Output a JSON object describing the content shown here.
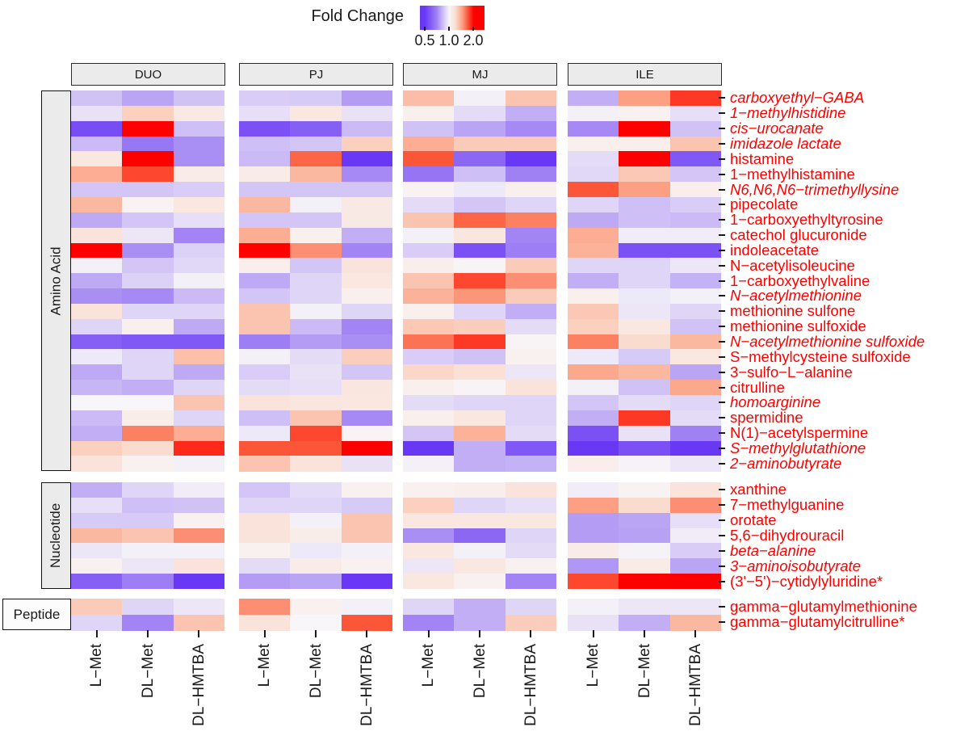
{
  "legend": {
    "title": "Fold Change",
    "ticks": [
      "0.5",
      "1.0",
      "2.0"
    ],
    "low_color": "#6838F5",
    "mid_color": "#F8F6F8",
    "high_color": "#FF0000",
    "scale_type": "log"
  },
  "facets": [
    "DUO",
    "PJ",
    "MJ",
    "ILE"
  ],
  "treatments": [
    "L−Met",
    "DL−Met",
    "DL−HMTBA"
  ],
  "label_color": "#FF0000",
  "chart_data": {
    "type": "heatmap",
    "value_label": "Fold Change",
    "legend_range": [
      0.5,
      1.0,
      2.0
    ],
    "facets": [
      "DUO",
      "PJ",
      "MJ",
      "ILE"
    ],
    "treatments": [
      "L−Met",
      "DL−Met",
      "DL−HMTBA"
    ],
    "column_order": [
      "DUO:L-Met",
      "DUO:DL-Met",
      "DUO:DL-HMTBA",
      "PJ:L-Met",
      "PJ:DL-Met",
      "PJ:DL-HMTBA",
      "MJ:L-Met",
      "MJ:DL-Met",
      "MJ:DL-HMTBA",
      "ILE:L-Met",
      "ILE:DL-Met",
      "ILE:DL-HMTBA"
    ],
    "groups": [
      {
        "name": "Amino Acid",
        "rows": [
          {
            "label": "carboxyethyl−GABA",
            "italic": true,
            "values": [
              0.85,
              0.78,
              0.85,
              0.88,
              0.87,
              0.76,
              1.33,
              0.98,
              1.3,
              0.8,
              1.45,
              1.8
            ]
          },
          {
            "label": "1−methylhistidine",
            "italic": true,
            "values": [
              0.94,
              1.25,
              1.1,
              0.93,
              1.12,
              0.94,
              1.05,
              0.92,
              0.8,
              0.98,
              1.04,
              0.93
            ]
          },
          {
            "label": "cis−urocanate",
            "italic": true,
            "values": [
              0.55,
              2.4,
              0.84,
              0.56,
              0.6,
              0.83,
              0.85,
              0.78,
              0.72,
              0.72,
              2.4,
              0.85
            ]
          },
          {
            "label": "imidazole lactate",
            "italic": true,
            "values": [
              0.83,
              0.67,
              0.73,
              0.84,
              0.86,
              1.25,
              1.4,
              1.27,
              1.27,
              1.05,
              1.06,
              1.3
            ]
          },
          {
            "label": "histamine",
            "italic": false,
            "values": [
              1.12,
              2.1,
              0.73,
              0.83,
              1.65,
              0.5,
              1.7,
              0.62,
              0.47,
              0.92,
              2.3,
              0.58
            ]
          },
          {
            "label": "1−methylhistamine",
            "italic": false,
            "values": [
              1.4,
              1.75,
              1.08,
              1.08,
              1.35,
              0.72,
              0.66,
              0.84,
              0.7,
              0.91,
              1.28,
              0.86
            ]
          },
          {
            "label": "N6,N6,N6−trimethyllysine",
            "italic": true,
            "values": [
              0.86,
              0.86,
              0.88,
              0.86,
              0.86,
              0.86,
              1.03,
              0.96,
              1.05,
              1.7,
              1.45,
              1.06
            ]
          },
          {
            "label": "pipecolate",
            "italic": false,
            "values": [
              1.35,
              1.03,
              1.12,
              1.35,
              0.98,
              1.1,
              0.92,
              0.86,
              0.9,
              0.9,
              0.84,
              0.88
            ]
          },
          {
            "label": "1−carboxyethyltyrosine",
            "italic": false,
            "values": [
              0.79,
              0.86,
              0.93,
              0.86,
              0.86,
              1.1,
              1.3,
              1.65,
              1.55,
              0.79,
              0.84,
              0.83
            ]
          },
          {
            "label": "catechol glucuronide",
            "italic": false,
            "values": [
              1.15,
              0.95,
              0.71,
              1.4,
              1.05,
              0.8,
              0.98,
              1.13,
              0.71,
              1.4,
              0.97,
              0.97
            ]
          },
          {
            "label": "indoleacetate",
            "italic": false,
            "values": [
              2.4,
              0.73,
              0.89,
              2.4,
              1.5,
              0.71,
              0.88,
              0.56,
              0.69,
              1.38,
              0.56,
              0.56
            ]
          },
          {
            "label": "N−acetylisoleucine",
            "italic": false,
            "values": [
              0.98,
              0.86,
              0.91,
              1.06,
              0.86,
              1.15,
              1.06,
              1.02,
              1.27,
              0.9,
              0.9,
              0.95
            ]
          },
          {
            "label": "1−carboxyethylvaline",
            "italic": false,
            "values": [
              0.79,
              0.89,
              0.98,
              0.79,
              0.9,
              1.12,
              1.3,
              1.75,
              1.5,
              0.8,
              0.9,
              0.81
            ]
          },
          {
            "label": "N−acetylmethionine",
            "italic": true,
            "values": [
              0.73,
              0.72,
              0.83,
              0.86,
              0.9,
              1.05,
              1.38,
              1.48,
              1.27,
              1.05,
              0.96,
              0.98
            ]
          },
          {
            "label": "methionine sulfone",
            "italic": false,
            "values": [
              1.15,
              0.9,
              0.9,
              1.3,
              0.98,
              0.9,
              1.05,
              0.9,
              0.8,
              1.28,
              0.95,
              0.9
            ]
          },
          {
            "label": "methionine sulfoxide",
            "italic": false,
            "values": [
              0.9,
              1.05,
              0.79,
              1.3,
              0.83,
              0.71,
              1.28,
              1.26,
              0.92,
              1.25,
              1.12,
              0.85
            ]
          },
          {
            "label": "N−acetylmethionine sulfoxide",
            "italic": true,
            "values": [
              0.6,
              0.58,
              0.58,
              0.69,
              0.76,
              0.73,
              1.6,
              1.8,
              1.02,
              1.55,
              1.2,
              1.35
            ]
          },
          {
            "label": "S−methylcysteine sulfoxide",
            "italic": false,
            "values": [
              0.96,
              0.9,
              1.32,
              0.98,
              0.92,
              1.26,
              0.88,
              0.85,
              1.04,
              0.96,
              0.87,
              1.12
            ]
          },
          {
            "label": "3−sulfo−L−alanine",
            "italic": false,
            "values": [
              0.79,
              0.9,
              0.79,
              0.88,
              0.94,
              0.86,
              1.22,
              1.18,
              0.95,
              1.42,
              1.35,
              0.78
            ]
          },
          {
            "label": "citrulline",
            "italic": false,
            "values": [
              0.82,
              0.8,
              0.9,
              0.92,
              0.93,
              1.13,
              1.05,
              1.02,
              1.15,
              0.98,
              0.85,
              1.42
            ]
          },
          {
            "label": "homoarginine",
            "italic": true,
            "values": [
              1.0,
              1.0,
              1.3,
              1.15,
              1.13,
              1.12,
              0.92,
              0.9,
              0.9,
              0.86,
              0.92,
              0.9
            ]
          },
          {
            "label": "spermidine",
            "italic": false,
            "values": [
              0.83,
              1.07,
              0.9,
              0.84,
              1.3,
              0.72,
              1.05,
              1.12,
              0.9,
              0.8,
              1.8,
              0.92
            ]
          },
          {
            "label": "N(1)−acetylspermine",
            "italic": false,
            "values": [
              0.8,
              1.55,
              1.4,
              0.96,
              1.75,
              1.02,
              0.86,
              1.38,
              0.92,
              0.56,
              0.94,
              0.7
            ]
          },
          {
            "label": "S−methylglutathione",
            "italic": true,
            "values": [
              1.25,
              1.2,
              1.85,
              1.7,
              1.7,
              2.4,
              0.47,
              0.8,
              0.58,
              0.45,
              0.56,
              0.45
            ]
          },
          {
            "label": "2−aminobutyrate",
            "italic": true,
            "values": [
              1.15,
              1.04,
              0.98,
              1.3,
              1.15,
              0.94,
              0.98,
              0.8,
              0.81,
              1.06,
              0.99,
              0.95
            ]
          }
        ]
      },
      {
        "name": "Nucleotide",
        "rows": [
          {
            "label": "xanthine",
            "italic": false,
            "values": [
              0.8,
              0.9,
              0.97,
              0.86,
              0.92,
              1.04,
              1.04,
              1.06,
              1.15,
              0.97,
              1.03,
              1.15
            ]
          },
          {
            "label": "7−methylguanine",
            "italic": false,
            "values": [
              0.93,
              0.84,
              0.85,
              0.9,
              0.9,
              0.87,
              1.25,
              0.9,
              0.93,
              1.45,
              1.2,
              1.5
            ]
          },
          {
            "label": "orotate",
            "italic": false,
            "values": [
              0.87,
              0.87,
              1.04,
              1.15,
              0.98,
              1.3,
              1.12,
              1.12,
              1.12,
              0.76,
              0.78,
              0.93
            ]
          },
          {
            "label": "5,6−dihydrouracil",
            "italic": false,
            "values": [
              1.35,
              1.3,
              1.5,
              1.15,
              1.07,
              1.3,
              0.73,
              0.62,
              0.9,
              0.76,
              0.77,
              0.97
            ]
          },
          {
            "label": "beta−alanine",
            "italic": true,
            "values": [
              0.95,
              0.98,
              0.98,
              1.04,
              0.96,
              0.98,
              1.12,
              0.98,
              0.92,
              1.08,
              0.99,
              0.88
            ]
          },
          {
            "label": "3−aminoisobutyrate",
            "italic": true,
            "values": [
              1.04,
              0.95,
              1.15,
              0.92,
              1.08,
              1.04,
              0.95,
              1.12,
              1.04,
              0.75,
              1.09,
              0.78
            ]
          },
          {
            "label": "(3'−5')−cytidylyluridine*",
            "italic": false,
            "values": [
              0.6,
              0.69,
              0.46,
              0.76,
              0.78,
              0.46,
              1.12,
              1.04,
              0.71,
              1.75,
              2.4,
              2.4
            ]
          }
        ]
      },
      {
        "name": "Peptide",
        "rows": [
          {
            "label": "gamma−glutamylmethionine",
            "italic": false,
            "values": [
              1.27,
              0.9,
              0.95,
              1.5,
              1.04,
              0.98,
              0.9,
              0.8,
              0.9,
              0.98,
              0.95,
              0.95
            ]
          },
          {
            "label": "gamma−glutamylcitrulline*",
            "italic": false,
            "values": [
              0.9,
              0.71,
              1.3,
              1.15,
              1.0,
              1.7,
              0.71,
              0.8,
              1.26,
              0.94,
              0.8,
              1.35
            ]
          }
        ]
      }
    ]
  }
}
